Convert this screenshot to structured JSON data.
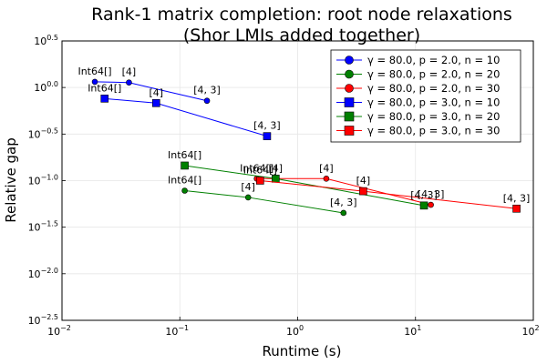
{
  "chart_data": {
    "type": "line",
    "title": [
      "Rank-1 matrix completion: root node relaxations",
      "(Shor LMIs added together)"
    ],
    "xlabel": "Runtime (s)",
    "ylabel": "Relative gap",
    "x_scale": "log10",
    "y_scale": "log10",
    "xlim": [
      0.01,
      100
    ],
    "ylim": [
      0.00316,
      3.16
    ],
    "x_ticks": [
      {
        "value": 0.01,
        "base": "10",
        "exp": "−2"
      },
      {
        "value": 0.1,
        "base": "10",
        "exp": "−1"
      },
      {
        "value": 1,
        "base": "10",
        "exp": "0"
      },
      {
        "value": 10,
        "base": "10",
        "exp": "1"
      },
      {
        "value": 100,
        "base": "10",
        "exp": "2"
      }
    ],
    "y_ticks": [
      {
        "value": 0.00316,
        "base": "10",
        "exp": "−2.5"
      },
      {
        "value": 0.01,
        "base": "10",
        "exp": "−2.0"
      },
      {
        "value": 0.0316,
        "base": "10",
        "exp": "−1.5"
      },
      {
        "value": 0.1,
        "base": "10",
        "exp": "−1.0"
      },
      {
        "value": 0.316,
        "base": "10",
        "exp": "−0.5"
      },
      {
        "value": 1,
        "base": "10",
        "exp": "0.0"
      },
      {
        "value": 3.16,
        "base": "10",
        "exp": "0.5"
      }
    ],
    "grid": true,
    "legend_position": "top-right",
    "series": [
      {
        "name": "γ = 80.0, p = 2.0, n = 10",
        "color": "#0000ff",
        "marker": "circle",
        "points": [
          {
            "x": 0.019,
            "y": 1.15,
            "label": "Int64[]"
          },
          {
            "x": 0.037,
            "y": 1.13,
            "label": "[4]"
          },
          {
            "x": 0.17,
            "y": 0.72,
            "label": "[4, 3]"
          }
        ]
      },
      {
        "name": "γ = 80.0, p = 2.0, n = 20",
        "color": "#008000",
        "marker": "circle",
        "points": [
          {
            "x": 0.11,
            "y": 0.078,
            "label": "Int64[]"
          },
          {
            "x": 0.38,
            "y": 0.066,
            "label": "[4]"
          },
          {
            "x": 2.45,
            "y": 0.045,
            "label": "[4, 3]"
          }
        ]
      },
      {
        "name": "γ = 80.0, p = 2.0, n = 30",
        "color": "#ff0000",
        "marker": "circle",
        "points": [
          {
            "x": 0.45,
            "y": 0.105,
            "label": "Int64[]"
          },
          {
            "x": 1.75,
            "y": 0.105,
            "label": "[4]"
          },
          {
            "x": 13.5,
            "y": 0.055,
            "label": "[4, 3]"
          }
        ]
      },
      {
        "name": "γ = 80.0, p = 3.0, n = 10",
        "color": "#0000ff",
        "marker": "square",
        "points": [
          {
            "x": 0.023,
            "y": 0.76,
            "label": "Int64[]"
          },
          {
            "x": 0.063,
            "y": 0.68,
            "label": "[4]"
          },
          {
            "x": 0.55,
            "y": 0.3,
            "label": "[4, 3]"
          }
        ]
      },
      {
        "name": "γ = 80.0, p = 3.0, n = 20",
        "color": "#008000",
        "marker": "square",
        "points": [
          {
            "x": 0.11,
            "y": 0.145,
            "label": "Int64[]"
          },
          {
            "x": 0.65,
            "y": 0.105,
            "label": "[4]"
          },
          {
            "x": 11.8,
            "y": 0.054,
            "label": "[4, 3]"
          }
        ]
      },
      {
        "name": "γ = 80.0, p = 3.0, n = 30",
        "color": "#ff0000",
        "marker": "square",
        "points": [
          {
            "x": 0.48,
            "y": 0.1,
            "label": "Int64[]"
          },
          {
            "x": 3.6,
            "y": 0.077,
            "label": "[4]"
          },
          {
            "x": 72,
            "y": 0.05,
            "label": "[4, 3]"
          }
        ]
      }
    ]
  }
}
